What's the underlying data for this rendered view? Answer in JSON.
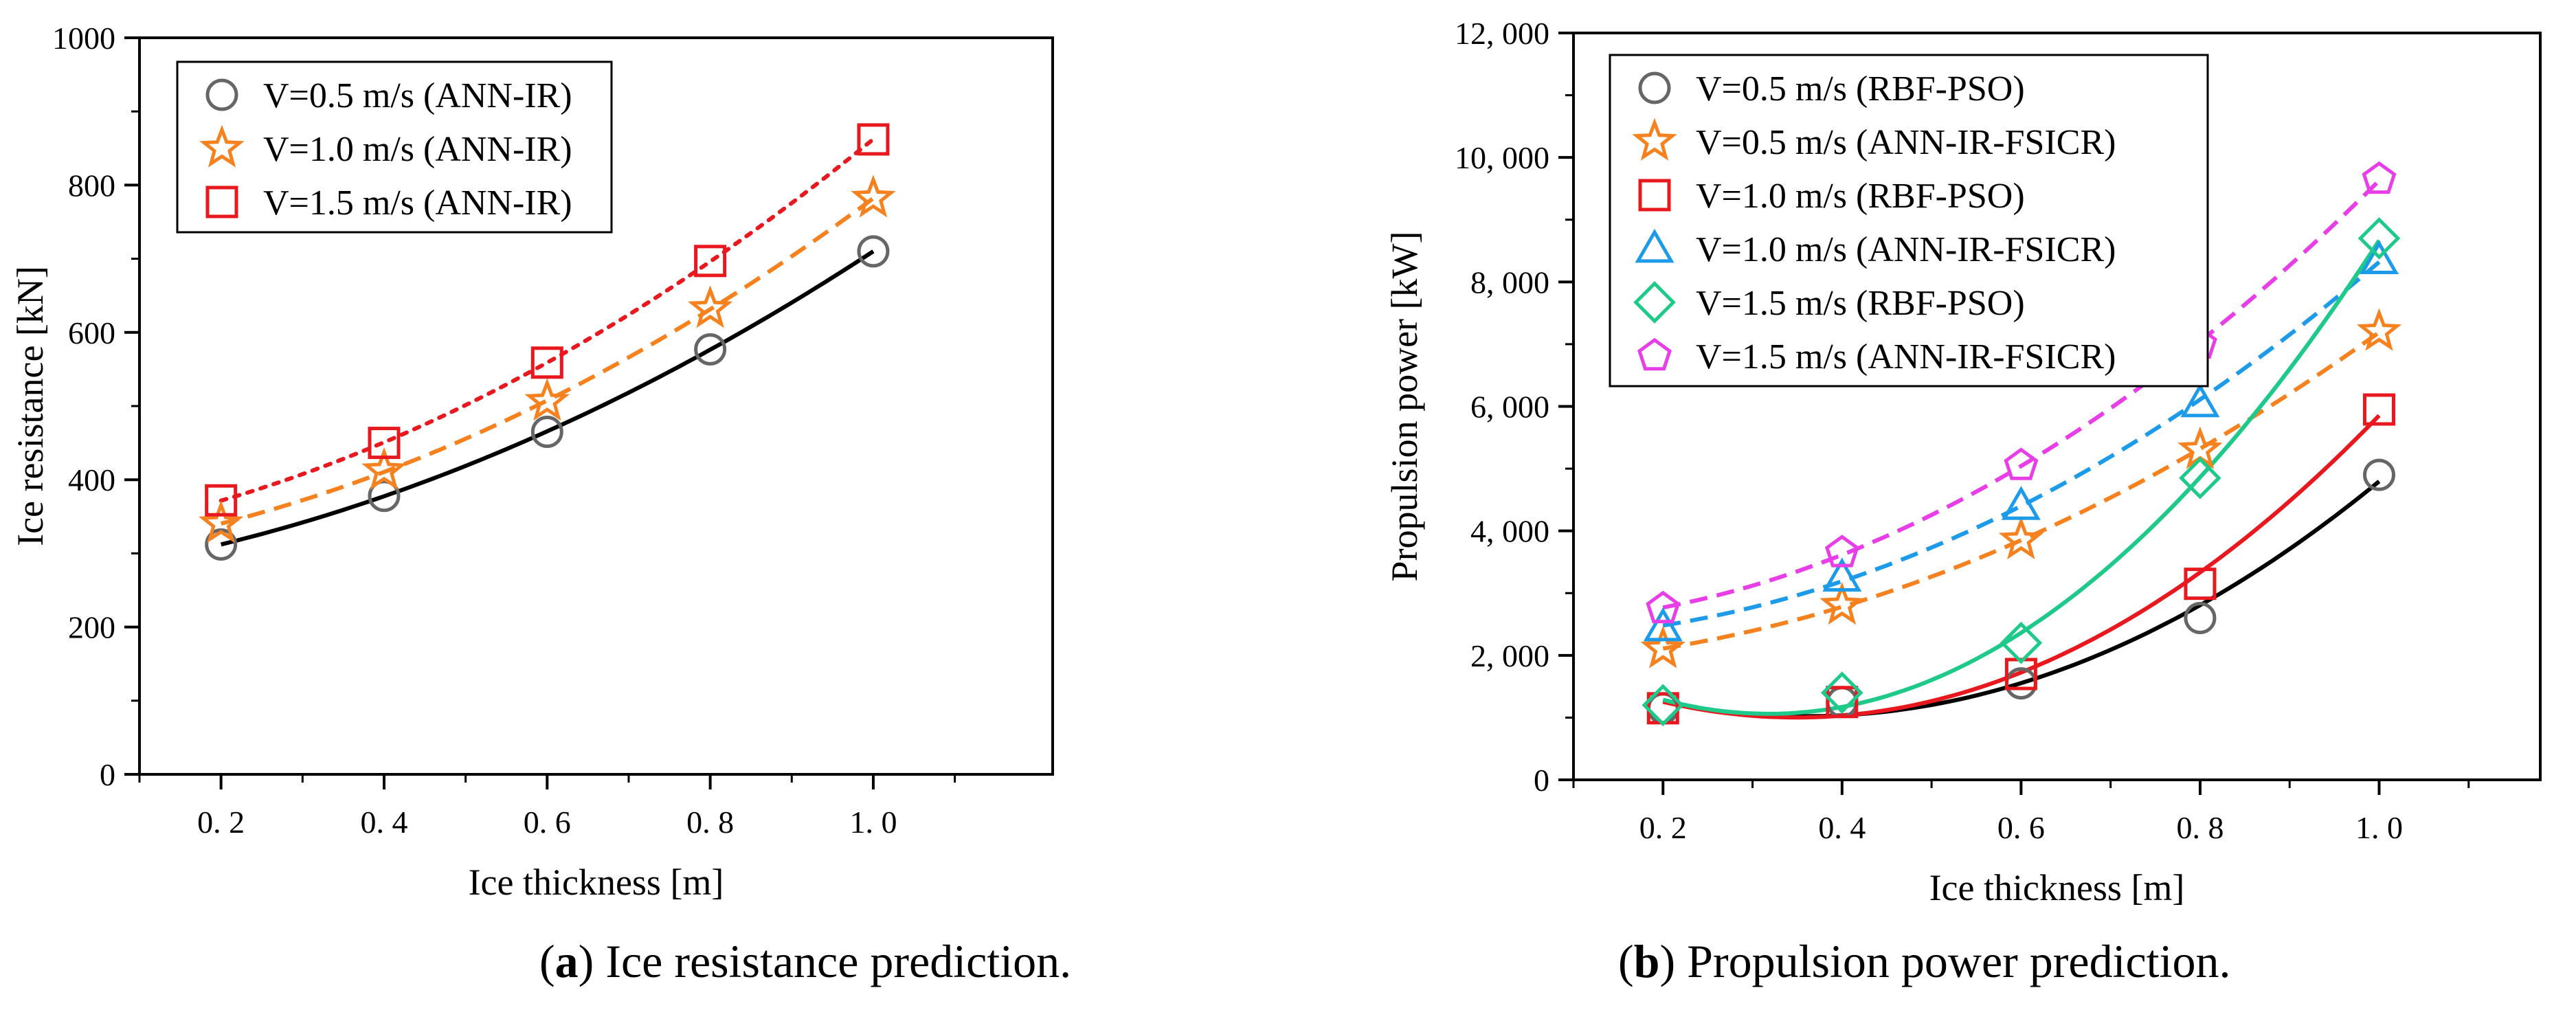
{
  "chart_data": [
    {
      "type": "scatter",
      "panel": "a",
      "xlabel": "Ice thickness [m]",
      "ylabel": "Ice resistance [kN]",
      "xlim": [
        0.1,
        1.22
      ],
      "ylim": [
        0,
        1000
      ],
      "xticks": [
        0.2,
        0.4,
        0.6,
        0.8,
        1.0
      ],
      "xtick_labels": [
        "0. 2",
        "0. 4",
        "0. 6",
        "0. 8",
        "1. 0"
      ],
      "yticks": [
        0,
        200,
        400,
        600,
        800,
        1000
      ],
      "ytick_labels": [
        "0",
        "200",
        "400",
        "600",
        "800",
        "1000"
      ],
      "grid": false,
      "legend": "top-left",
      "caption_label": "a",
      "caption_text": "Ice resistance prediction.",
      "series": [
        {
          "name": "V=0.5 m/s (ANN-IR)",
          "marker": "circle",
          "color": "#666666",
          "fit_color": "#000000",
          "fit_style": "solid",
          "x": [
            0.2,
            0.4,
            0.6,
            0.8,
            1.0
          ],
          "values": [
            312,
            378,
            465,
            577,
            710
          ]
        },
        {
          "name": "V=1.0 m/s (ANN-IR)",
          "marker": "star",
          "color": "#f5821f",
          "fit_color": "#f5821f",
          "fit_style": "dashed",
          "x": [
            0.2,
            0.4,
            0.6,
            0.8,
            1.0
          ],
          "values": [
            340,
            412,
            506,
            632,
            782
          ]
        },
        {
          "name": "V=1.5 m/s (ANN-IR)",
          "marker": "square",
          "color": "#e8191e",
          "fit_color": "#e8191e",
          "fit_style": "dotted",
          "x": [
            0.2,
            0.4,
            0.6,
            0.8,
            1.0
          ],
          "values": [
            372,
            450,
            559,
            697,
            862
          ]
        }
      ]
    },
    {
      "type": "scatter",
      "panel": "b",
      "xlabel": "Ice thickness [m]",
      "ylabel": "Propulsion power [kW]",
      "xlim": [
        0.1,
        1.18
      ],
      "ylim": [
        0,
        12000
      ],
      "xticks": [
        0.2,
        0.4,
        0.6,
        0.8,
        1.0
      ],
      "xtick_labels": [
        "0. 2",
        "0. 4",
        "0. 6",
        "0. 8",
        "1. 0"
      ],
      "yticks": [
        0,
        2000,
        4000,
        6000,
        8000,
        10000,
        12000
      ],
      "ytick_labels": [
        "0",
        "2, 000",
        "4, 000",
        "6, 000",
        "8, 000",
        "10, 000",
        "12, 000"
      ],
      "grid": false,
      "legend": "top-left",
      "caption_label": "b",
      "caption_text": "Propulsion power prediction.",
      "series": [
        {
          "name": "V=0.5 m/s (RBF-PSO)",
          "marker": "circle",
          "color": "#666666",
          "fit_color": "#000000",
          "fit_style": "solid",
          "x": [
            0.2,
            0.4,
            0.6,
            0.8,
            1.0
          ],
          "values": [
            1150,
            1250,
            1550,
            2600,
            4900
          ]
        },
        {
          "name": "V=0.5 m/s (ANN-IR-FSICR)",
          "marker": "star",
          "color": "#f5821f",
          "fit_color": "#f5821f",
          "fit_style": "dashed",
          "x": [
            0.2,
            0.4,
            0.6,
            0.8,
            1.0
          ],
          "values": [
            2100,
            2800,
            3850,
            5300,
            7200
          ]
        },
        {
          "name": "V=1.0 m/s (RBF-PSO)",
          "marker": "square",
          "color": "#e8191e",
          "fit_color": "#e8191e",
          "fit_style": "solid",
          "x": [
            0.2,
            0.4,
            0.6,
            0.8,
            1.0
          ],
          "values": [
            1150,
            1250,
            1700,
            3150,
            5950
          ]
        },
        {
          "name": "V=1.0 m/s (ANN-IR-FSICR)",
          "marker": "triangle",
          "color": "#1e9be8",
          "fit_color": "#1e9be8",
          "fit_style": "dashed",
          "x": [
            0.2,
            0.4,
            0.6,
            0.8,
            1.0
          ],
          "values": [
            2450,
            3250,
            4400,
            6050,
            8350
          ]
        },
        {
          "name": "V=1.5 m/s (RBF-PSO)",
          "marker": "diamond",
          "color": "#1ec98a",
          "fit_color": "#1ec98a",
          "fit_style": "solid",
          "x": [
            0.2,
            0.4,
            0.6,
            0.8,
            1.0
          ],
          "values": [
            1200,
            1400,
            2200,
            4850,
            8700
          ]
        },
        {
          "name": "V=1.5 m/s (ANN-IR-FSICR)",
          "marker": "pentagon",
          "color": "#e83ee8",
          "fit_color": "#e83ee8",
          "fit_style": "dashed",
          "x": [
            0.2,
            0.4,
            0.6,
            0.8,
            1.0
          ],
          "values": [
            2750,
            3650,
            5050,
            7000,
            9650
          ]
        }
      ]
    }
  ]
}
